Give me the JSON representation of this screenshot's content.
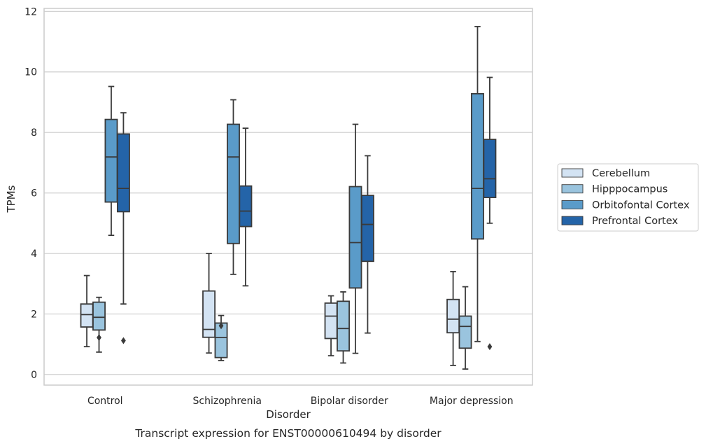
{
  "chart_data": {
    "type": "box",
    "title": "",
    "caption": "Transcript expression for ENST00000610494 by disorder",
    "xlabel": "Disorder",
    "ylabel": "TPMs",
    "ylim": [
      -0.35,
      12.1
    ],
    "yticks": [
      0,
      2,
      4,
      6,
      8,
      10,
      12
    ],
    "grid": true,
    "legend_position": "right",
    "categories": [
      "Control",
      "Schizophrenia",
      "Bipolar disorder",
      "Major depression"
    ],
    "series": [
      {
        "name": "Cerebellum",
        "color": "#d3e3f3",
        "boxes": [
          {
            "whisker_low": 0.92,
            "q1": 1.57,
            "median": 1.98,
            "q3": 2.33,
            "whisker_high": 3.27,
            "outliers": []
          },
          {
            "whisker_low": 0.71,
            "q1": 1.23,
            "median": 1.49,
            "q3": 2.76,
            "whisker_high": 4.0,
            "outliers": []
          },
          {
            "whisker_low": 0.62,
            "q1": 1.19,
            "median": 1.93,
            "q3": 2.36,
            "whisker_high": 2.6,
            "outliers": []
          },
          {
            "whisker_low": 0.3,
            "q1": 1.38,
            "median": 1.83,
            "q3": 2.48,
            "whisker_high": 3.4,
            "outliers": []
          }
        ]
      },
      {
        "name": "Hipppocampus",
        "color": "#9ac4de",
        "boxes": [
          {
            "whisker_low": 0.74,
            "q1": 1.47,
            "median": 1.89,
            "q3": 2.39,
            "whisker_high": 2.55,
            "outliers": [
              1.22
            ]
          },
          {
            "whisker_low": 0.46,
            "q1": 0.56,
            "median": 1.22,
            "q3": 1.7,
            "whisker_high": 1.95,
            "outliers": [
              1.61
            ]
          },
          {
            "whisker_low": 0.38,
            "q1": 0.78,
            "median": 1.52,
            "q3": 2.42,
            "whisker_high": 2.73,
            "outliers": []
          },
          {
            "whisker_low": 0.18,
            "q1": 0.87,
            "median": 1.59,
            "q3": 1.93,
            "whisker_high": 2.9,
            "outliers": []
          }
        ]
      },
      {
        "name": "Orbitofontal Cortex",
        "color": "#5a9bc9",
        "boxes": [
          {
            "whisker_low": 4.6,
            "q1": 5.7,
            "median": 7.19,
            "q3": 8.43,
            "whisker_high": 9.52,
            "outliers": []
          },
          {
            "whisker_low": 3.31,
            "q1": 4.33,
            "median": 7.19,
            "q3": 8.27,
            "whisker_high": 9.08,
            "outliers": []
          },
          {
            "whisker_low": 0.7,
            "q1": 2.86,
            "median": 4.36,
            "q3": 6.21,
            "whisker_high": 8.27,
            "outliers": []
          },
          {
            "whisker_low": 1.09,
            "q1": 4.48,
            "median": 6.15,
            "q3": 9.28,
            "whisker_high": 11.5,
            "outliers": []
          }
        ]
      },
      {
        "name": "Prefrontal Cortex",
        "color": "#2464a8",
        "boxes": [
          {
            "whisker_low": 2.33,
            "q1": 5.38,
            "median": 6.15,
            "q3": 7.95,
            "whisker_high": 8.65,
            "outliers": [
              1.12
            ]
          },
          {
            "whisker_low": 2.93,
            "q1": 4.89,
            "median": 5.4,
            "q3": 6.23,
            "whisker_high": 8.14,
            "outliers": []
          },
          {
            "whisker_low": 1.37,
            "q1": 3.74,
            "median": 4.96,
            "q3": 5.92,
            "whisker_high": 7.23,
            "outliers": []
          },
          {
            "whisker_low": 5.0,
            "q1": 5.85,
            "median": 6.47,
            "q3": 7.77,
            "whisker_high": 9.82,
            "outliers": [
              0.92
            ]
          }
        ]
      }
    ]
  }
}
